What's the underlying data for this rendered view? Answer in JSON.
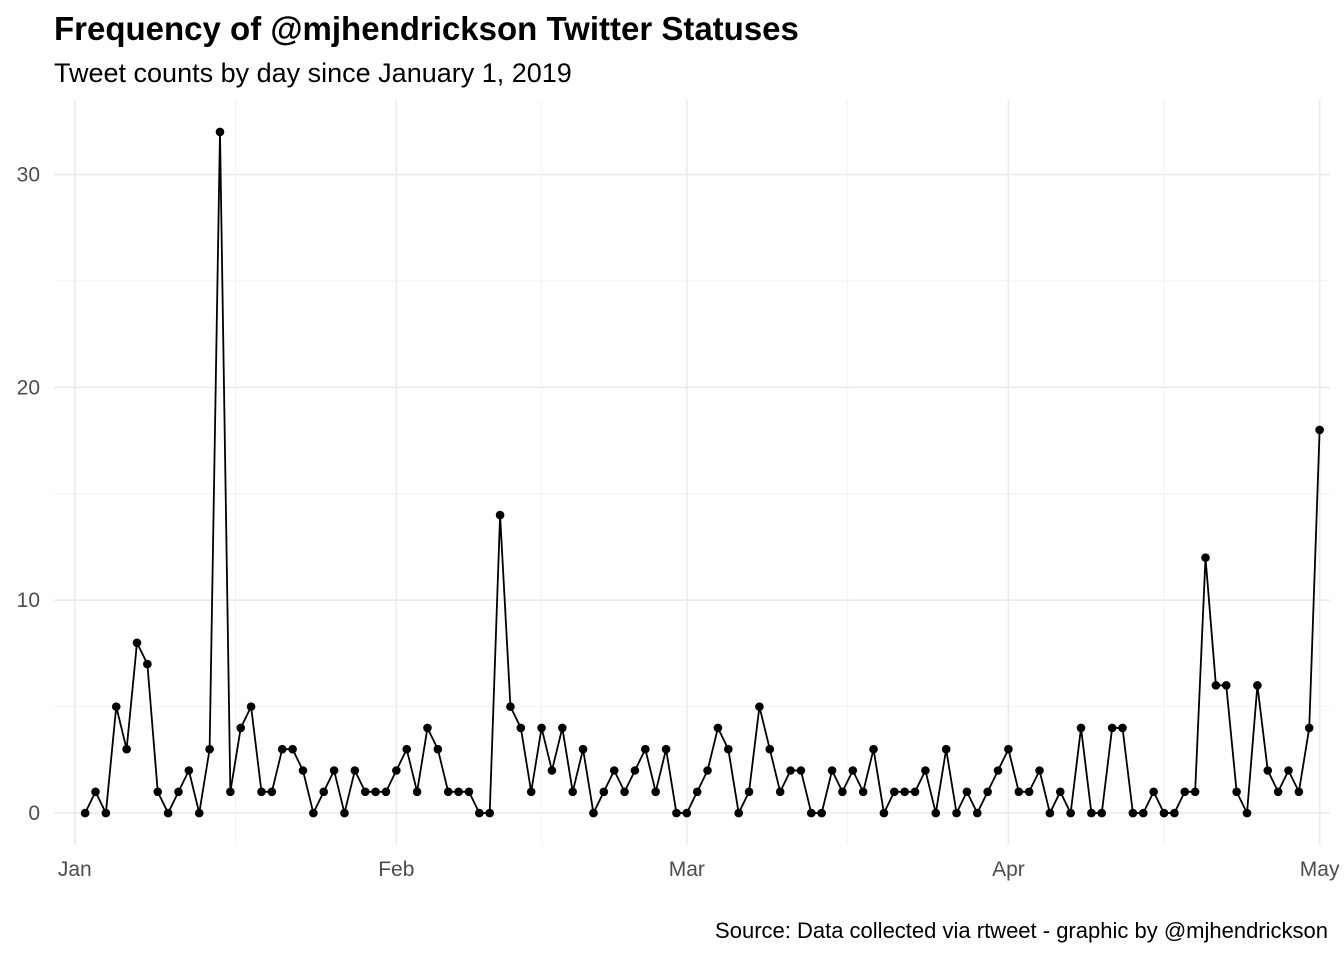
{
  "chart_data": {
    "type": "line",
    "title": "Frequency of @mjhendrickson Twitter Statuses",
    "subtitle": "Tweet counts by day since January 1, 2019",
    "caption": "Source: Data collected via rtweet - graphic by @mjhendrickson",
    "xlabel": "",
    "ylabel": "",
    "ylim": [
      -1.5,
      33.5
    ],
    "xlim": [
      "2018-12-30",
      "2019-05-02"
    ],
    "x_ticks": [
      {
        "date": "2019-01-01",
        "label": "Jan"
      },
      {
        "date": "2019-02-01",
        "label": "Feb"
      },
      {
        "date": "2019-03-01",
        "label": "Mar"
      },
      {
        "date": "2019-04-01",
        "label": "Apr"
      },
      {
        "date": "2019-05-01",
        "label": "May"
      }
    ],
    "y_ticks": [
      0,
      10,
      20,
      30
    ],
    "grid": true,
    "markers": true,
    "start_date": "2019-01-02",
    "series": [
      {
        "values": [
          0,
          1,
          0,
          5,
          3,
          8,
          7,
          1,
          0,
          1,
          2,
          0,
          3,
          32,
          1,
          4,
          5,
          1,
          1,
          3,
          3,
          2,
          0,
          1,
          2,
          0,
          2,
          1,
          1,
          1,
          2,
          3,
          1,
          4,
          3,
          1,
          1,
          1,
          0,
          0,
          14,
          5,
          4,
          1,
          4,
          2,
          4,
          1,
          3,
          0,
          1,
          2,
          1,
          2,
          3,
          1,
          3,
          0,
          0,
          1,
          2,
          4,
          3,
          0,
          1,
          5,
          3,
          1,
          2,
          2,
          0,
          0,
          2,
          1,
          2,
          1,
          3,
          0,
          1,
          1,
          1,
          2,
          0,
          3,
          0,
          1,
          0,
          1,
          2,
          3,
          1,
          1,
          2,
          0,
          1,
          0,
          4,
          0,
          0,
          4,
          4,
          0,
          0,
          1,
          0,
          0,
          1,
          1,
          12,
          6,
          6,
          1,
          0,
          6,
          2,
          1,
          2,
          1,
          4,
          18
        ]
      }
    ]
  }
}
